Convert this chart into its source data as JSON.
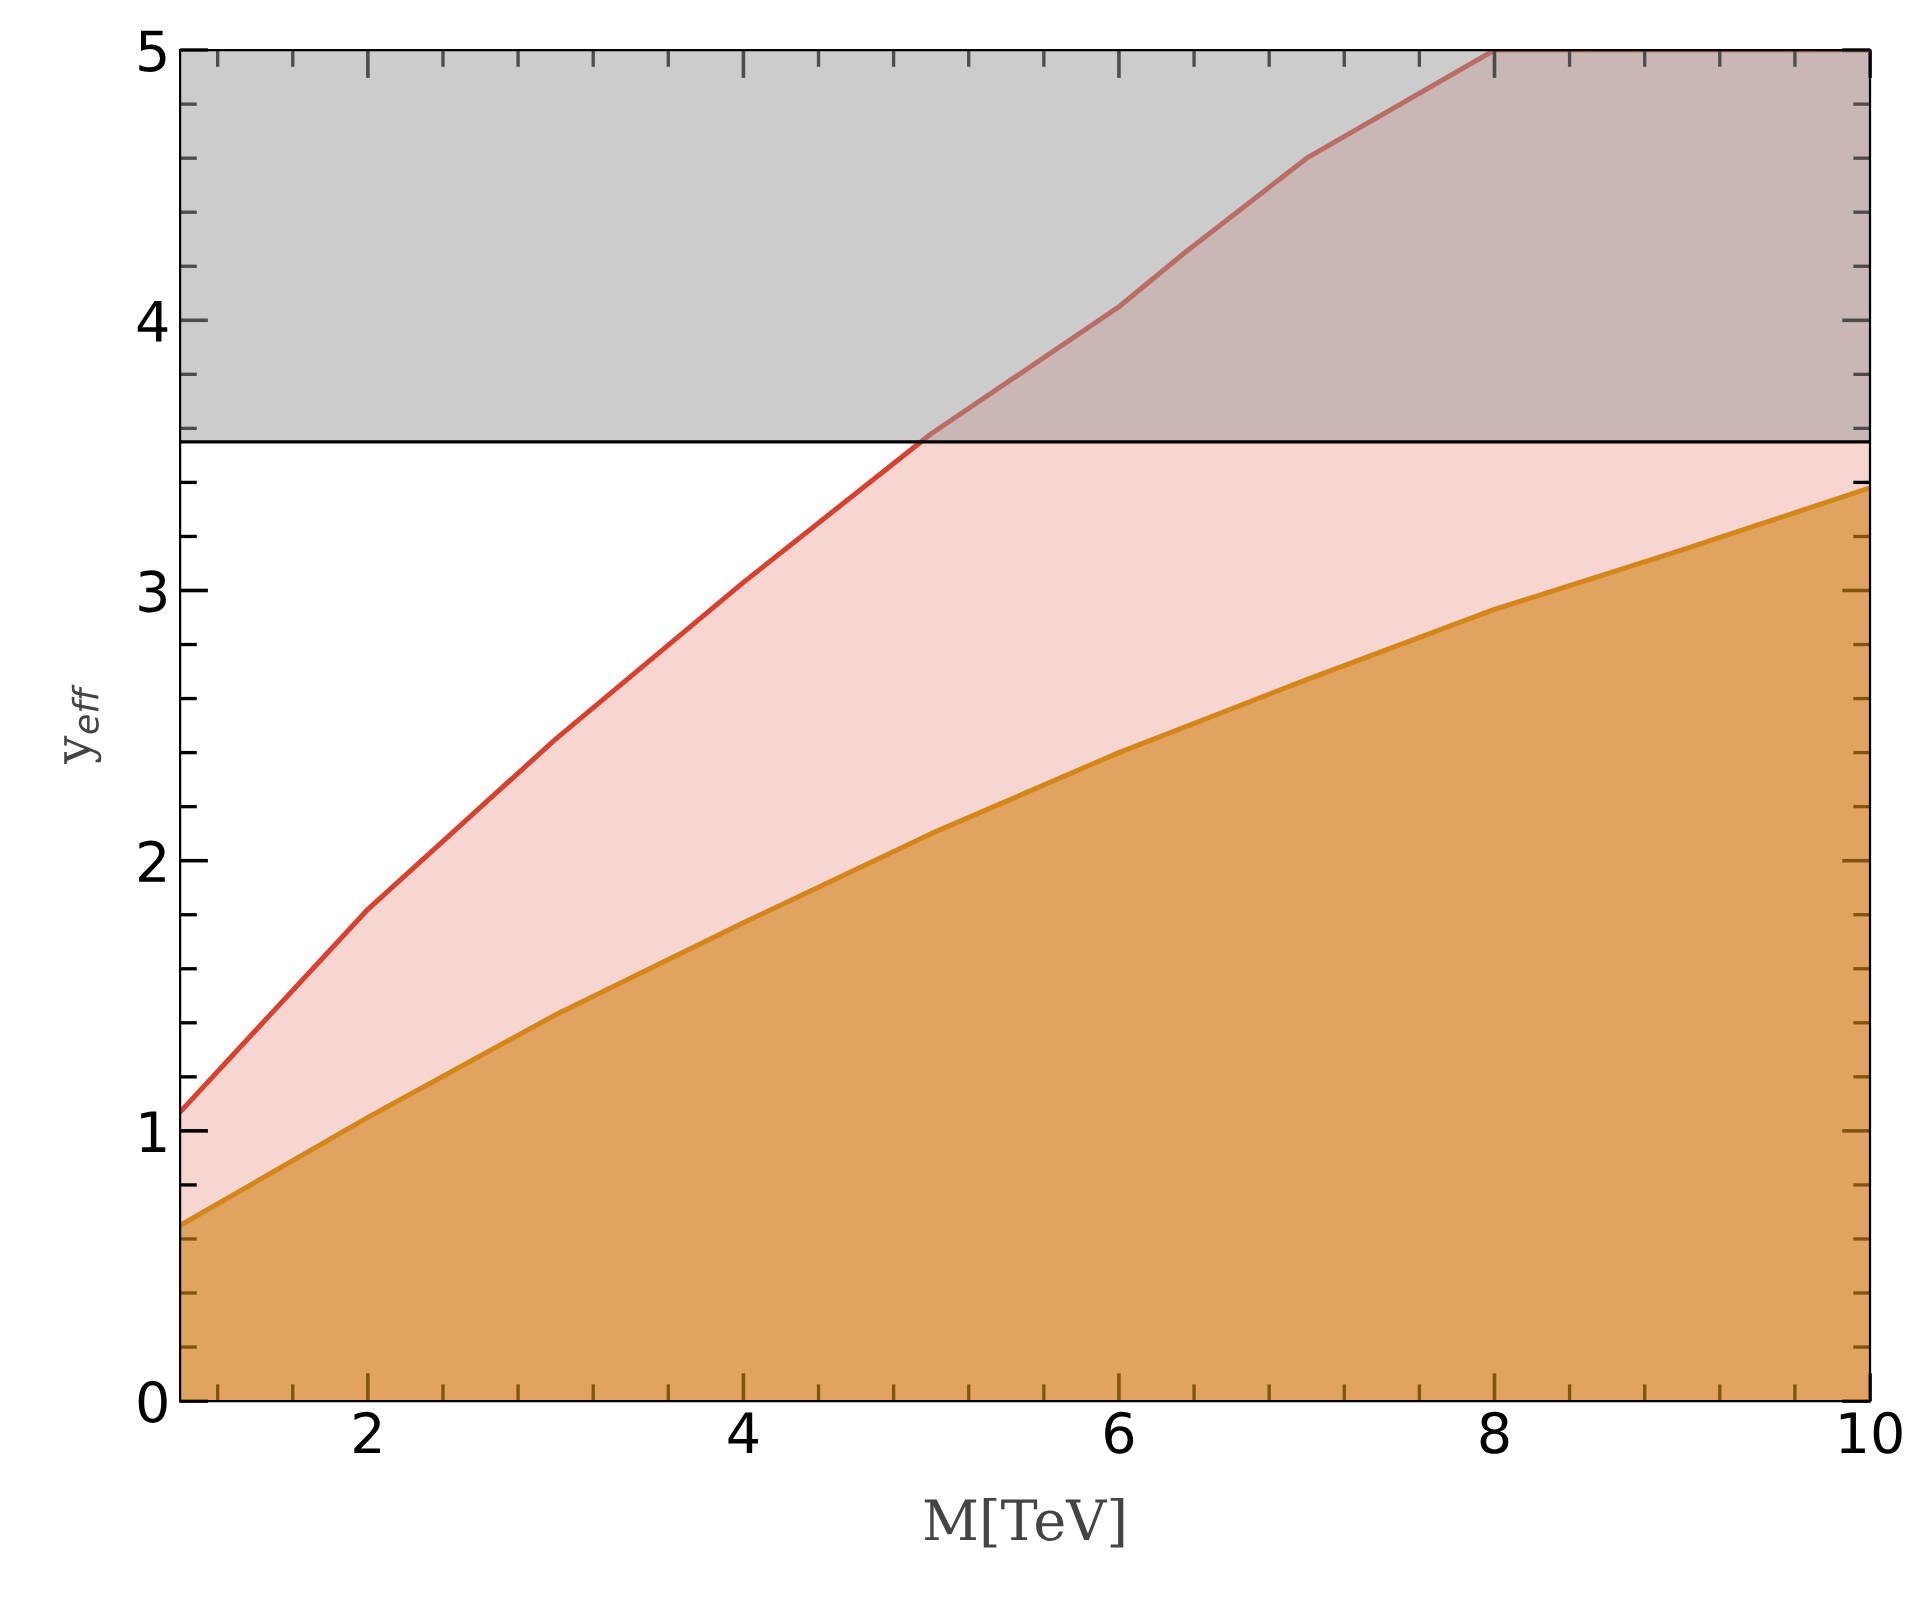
{
  "chart_data": {
    "type": "area",
    "xlabel": "M[TeV]",
    "ylabel": "y$_{eff}$",
    "xlim": [
      1,
      10
    ],
    "ylim": [
      0,
      5
    ],
    "xticks": [
      2,
      4,
      6,
      8,
      10
    ],
    "yticks": [
      0,
      1,
      2,
      3,
      4,
      5
    ],
    "grid": false,
    "legend": false,
    "series": [
      {
        "color": "#d9412f",
        "x": [
          1,
          2,
          3,
          4,
          5,
          6,
          6.35,
          7,
          8,
          10
        ],
        "values": [
          1.07,
          1.82,
          2.45,
          3.03,
          3.58,
          4.05,
          4.25,
          4.6,
          5.0,
          5.0
        ]
      },
      {
        "color": "#d4861a",
        "x": [
          1,
          2,
          3,
          4,
          5,
          6,
          7,
          8,
          9,
          10
        ],
        "values": [
          0.65,
          1.05,
          1.43,
          1.77,
          2.1,
          2.4,
          2.67,
          2.93,
          3.15,
          3.38
        ]
      }
    ],
    "bands": [
      {
        "axis": "y",
        "from": 3.55,
        "to": 5,
        "color": "#999999"
      }
    ],
    "ref_lines": [
      {
        "axis": "y",
        "value": 3.55,
        "color": "#000000"
      }
    ]
  }
}
